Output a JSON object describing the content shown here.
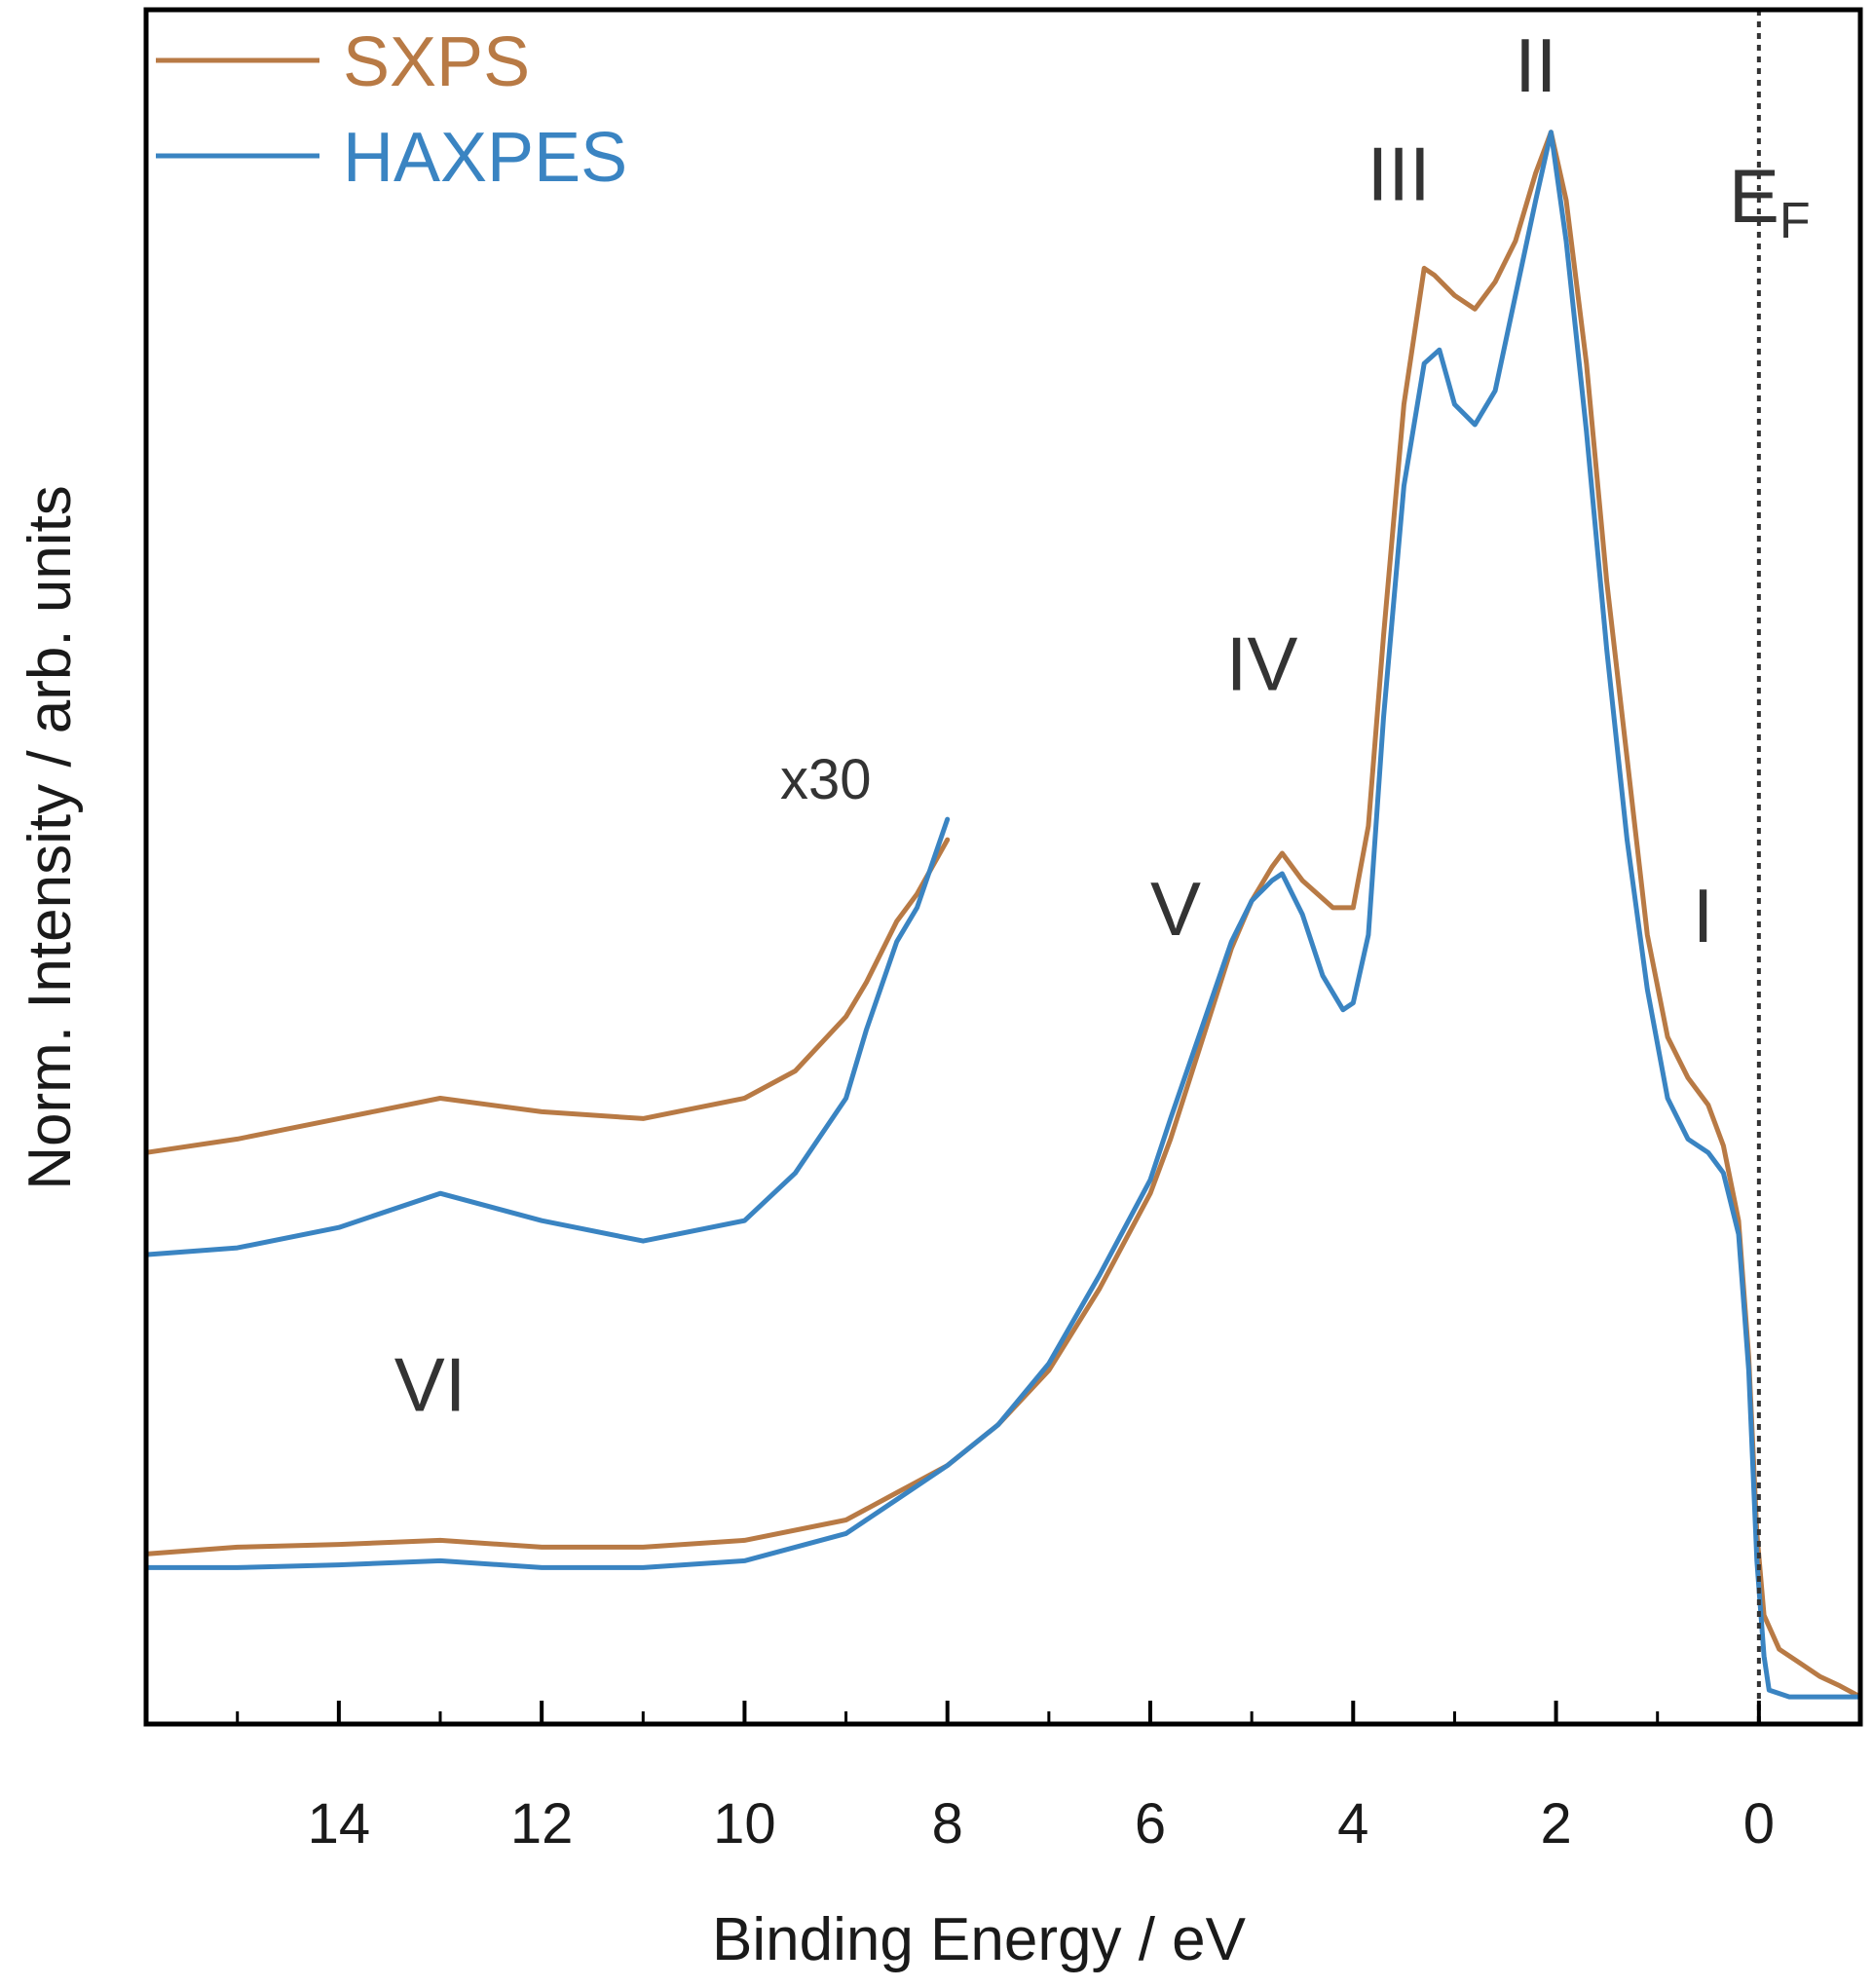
{
  "chart_data": {
    "type": "line",
    "title": "",
    "xlabel": "Binding Energy / eV",
    "ylabel": "Norm. Intensity / arb. units",
    "x_reversed": true,
    "xlim": [
      15.9,
      -1.0
    ],
    "ylim": [
      -0.02,
      1.24
    ],
    "x_ticks": [
      14,
      12,
      10,
      8,
      6,
      4,
      2,
      0
    ],
    "x_tick_labels": [
      "14",
      "12",
      "10",
      "8",
      "6",
      "4",
      "2",
      "0"
    ],
    "x_minor_ticks": [
      15,
      13,
      11,
      9,
      7,
      5,
      3,
      1,
      -1
    ],
    "grid": false,
    "legend": {
      "position": "top-left",
      "entries": [
        "SXPS",
        "HAXPES"
      ]
    },
    "fermi_level": {
      "x": 0,
      "label": "E",
      "subscript": "F",
      "style": "dotted"
    },
    "peak_labels": [
      {
        "text": "I",
        "x": 0.55,
        "y": 0.555
      },
      {
        "text": "II",
        "x": 2.2,
        "y": 1.18
      },
      {
        "text": "III",
        "x": 3.55,
        "y": 1.1
      },
      {
        "text": "IV",
        "x": 4.9,
        "y": 0.74
      },
      {
        "text": "V",
        "x": 5.75,
        "y": 0.56
      },
      {
        "text": "VI",
        "x": 13.1,
        "y": 0.21
      }
    ],
    "annotations": [
      {
        "text": "x30",
        "x": 9.2,
        "y": 0.66
      }
    ],
    "series": [
      {
        "name": "SXPS",
        "color": "#b87a45",
        "x": [
          15.9,
          15.0,
          14.0,
          13.0,
          12.0,
          11.0,
          10.0,
          9.0,
          8.5,
          8.0,
          7.5,
          7.0,
          6.5,
          6.0,
          5.8,
          5.5,
          5.2,
          5.0,
          4.8,
          4.7,
          4.5,
          4.2,
          4.0,
          3.85,
          3.7,
          3.5,
          3.3,
          3.2,
          3.0,
          2.8,
          2.6,
          2.4,
          2.2,
          2.05,
          1.9,
          1.7,
          1.5,
          1.3,
          1.1,
          0.9,
          0.7,
          0.5,
          0.35,
          0.2,
          0.1,
          0.02,
          -0.05,
          -0.2,
          -0.4,
          -0.6,
          -0.8,
          -1.0
        ],
        "y": [
          0.105,
          0.11,
          0.112,
          0.115,
          0.11,
          0.11,
          0.115,
          0.13,
          0.15,
          0.17,
          0.2,
          0.24,
          0.3,
          0.37,
          0.41,
          0.48,
          0.55,
          0.585,
          0.61,
          0.62,
          0.6,
          0.58,
          0.58,
          0.64,
          0.78,
          0.95,
          1.05,
          1.045,
          1.03,
          1.02,
          1.04,
          1.07,
          1.12,
          1.15,
          1.1,
          0.98,
          0.82,
          0.69,
          0.56,
          0.485,
          0.455,
          0.435,
          0.405,
          0.35,
          0.25,
          0.12,
          0.06,
          0.035,
          0.025,
          0.015,
          0.008,
          0.0
        ]
      },
      {
        "name": "HAXPES",
        "color": "#3a84c2",
        "x": [
          15.9,
          15.0,
          14.0,
          13.0,
          12.0,
          11.0,
          10.0,
          9.0,
          8.5,
          8.0,
          7.5,
          7.0,
          6.5,
          6.0,
          5.8,
          5.5,
          5.2,
          5.0,
          4.8,
          4.7,
          4.5,
          4.3,
          4.1,
          4.0,
          3.85,
          3.7,
          3.5,
          3.3,
          3.15,
          3.0,
          2.8,
          2.6,
          2.4,
          2.2,
          2.05,
          1.9,
          1.7,
          1.5,
          1.3,
          1.1,
          0.9,
          0.7,
          0.5,
          0.35,
          0.2,
          0.1,
          0.02,
          -0.05,
          -0.1,
          -0.3,
          -1.0
        ],
        "y": [
          0.095,
          0.095,
          0.097,
          0.1,
          0.095,
          0.095,
          0.1,
          0.12,
          0.145,
          0.17,
          0.2,
          0.245,
          0.31,
          0.38,
          0.425,
          0.49,
          0.555,
          0.585,
          0.6,
          0.605,
          0.575,
          0.53,
          0.505,
          0.51,
          0.56,
          0.72,
          0.89,
          0.98,
          0.99,
          0.95,
          0.935,
          0.96,
          1.03,
          1.1,
          1.15,
          1.07,
          0.93,
          0.77,
          0.63,
          0.52,
          0.44,
          0.41,
          0.4,
          0.385,
          0.34,
          0.24,
          0.1,
          0.03,
          0.005,
          0.0,
          0.0
        ]
      },
      {
        "name": "SXPS x30",
        "color": "#b87a45",
        "x": [
          15.9,
          15.0,
          14.0,
          13.0,
          12.0,
          11.0,
          10.0,
          9.5,
          9.0,
          8.8,
          8.5,
          8.3,
          8.0
        ],
        "y": [
          0.4,
          0.41,
          0.425,
          0.44,
          0.43,
          0.425,
          0.44,
          0.46,
          0.5,
          0.525,
          0.57,
          0.59,
          0.63
        ]
      },
      {
        "name": "HAXPES x30",
        "color": "#3a84c2",
        "x": [
          15.9,
          15.0,
          14.0,
          13.0,
          12.0,
          11.0,
          10.0,
          9.5,
          9.0,
          8.8,
          8.5,
          8.3,
          8.0
        ],
        "y": [
          0.325,
          0.33,
          0.345,
          0.37,
          0.35,
          0.335,
          0.35,
          0.385,
          0.44,
          0.49,
          0.555,
          0.58,
          0.645
        ]
      }
    ]
  }
}
